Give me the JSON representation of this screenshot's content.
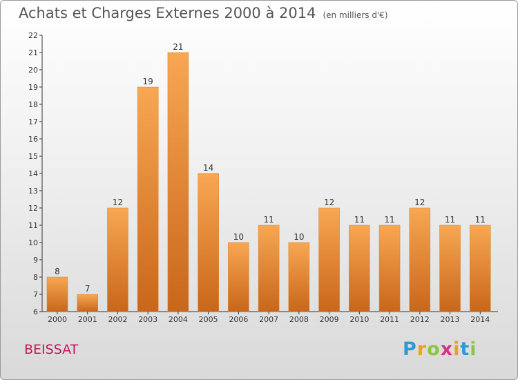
{
  "title": "Achats et Charges Externes 2000 à 2014",
  "unit_label": "(en milliers d'€)",
  "commune": "BEISSAT",
  "logo": {
    "letters": [
      "P",
      "r",
      "o",
      "x",
      "i",
      "t",
      "i"
    ],
    "colors": [
      "#2e9ad6",
      "#e8a317",
      "#8cc63f",
      "#d63384",
      "#e8a317",
      "#2e9ad6",
      "#8cc63f"
    ]
  },
  "chart_data": {
    "type": "bar",
    "title": "Achats et Charges Externes 2000 à 2014",
    "categories": [
      "2000",
      "2001",
      "2002",
      "2003",
      "2004",
      "2005",
      "2006",
      "2007",
      "2008",
      "2009",
      "2010",
      "2011",
      "2012",
      "2013",
      "2014"
    ],
    "values": [
      8,
      7,
      12,
      19,
      21,
      14,
      10,
      11,
      10,
      12,
      11,
      11,
      12,
      11,
      11
    ],
    "data_labels": [
      "8",
      "7",
      "12",
      "19",
      "21",
      "14",
      "10",
      "11",
      "10",
      "12",
      "11",
      "11",
      "12",
      "11",
      "11"
    ],
    "ylim": [
      6,
      22
    ],
    "yticks": [
      6,
      7,
      8,
      9,
      10,
      11,
      12,
      13,
      14,
      15,
      16,
      17,
      18,
      19,
      20,
      21,
      22
    ],
    "grid": false,
    "bar_color": "#f0923a"
  }
}
